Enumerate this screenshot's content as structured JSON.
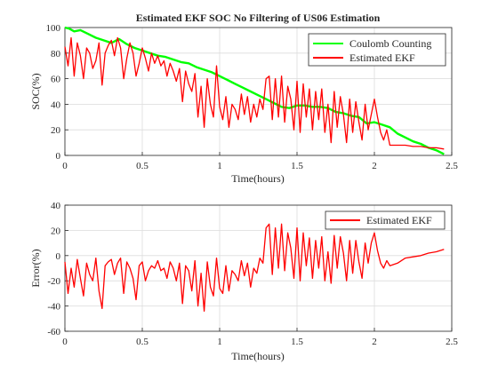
{
  "chart_data": [
    {
      "type": "line",
      "title": "Estimated EKF SOC No Filtering of US06 Estimation",
      "xlabel": "Time(hours)",
      "ylabel": "SOC(%)",
      "xlim": [
        0,
        2.5
      ],
      "ylim": [
        0,
        100
      ],
      "xticks": [
        "0",
        "0.5",
        "1",
        "1.5",
        "2",
        "2.5"
      ],
      "yticks": [
        "0",
        "20",
        "40",
        "60",
        "80",
        "100"
      ],
      "grid": true,
      "legend": "top-right",
      "series": [
        {
          "name": "Coulomb Counting",
          "color": "#00ff00",
          "x": [
            0,
            0.03,
            0.06,
            0.1,
            0.15,
            0.2,
            0.25,
            0.3,
            0.35,
            0.4,
            0.45,
            0.5,
            0.55,
            0.6,
            0.65,
            0.7,
            0.75,
            0.8,
            0.85,
            0.9,
            0.95,
            1.0,
            1.05,
            1.1,
            1.15,
            1.2,
            1.25,
            1.3,
            1.35,
            1.4,
            1.45,
            1.5,
            1.55,
            1.6,
            1.65,
            1.7,
            1.75,
            1.8,
            1.85,
            1.9,
            1.95,
            2.0,
            2.05,
            2.1,
            2.15,
            2.2,
            2.25,
            2.3,
            2.35,
            2.4,
            2.45
          ],
          "values": [
            100,
            99,
            97,
            98,
            95,
            92,
            90,
            88,
            91,
            87,
            84,
            82,
            80,
            78,
            77,
            75,
            73,
            72,
            69,
            67,
            65,
            62,
            59,
            56,
            53,
            50,
            47,
            44,
            41,
            38,
            37,
            39,
            39,
            38,
            38,
            37,
            34,
            33,
            31,
            30,
            25,
            26,
            24,
            22,
            17,
            14,
            11,
            9,
            6,
            4,
            1
          ]
        },
        {
          "name": "Estimated EKF",
          "color": "#ff0000",
          "x": [
            0,
            0.02,
            0.04,
            0.06,
            0.08,
            0.1,
            0.12,
            0.14,
            0.16,
            0.18,
            0.2,
            0.22,
            0.24,
            0.26,
            0.28,
            0.3,
            0.32,
            0.34,
            0.36,
            0.38,
            0.4,
            0.42,
            0.44,
            0.46,
            0.48,
            0.5,
            0.52,
            0.54,
            0.56,
            0.58,
            0.6,
            0.62,
            0.64,
            0.66,
            0.68,
            0.7,
            0.72,
            0.74,
            0.76,
            0.78,
            0.8,
            0.82,
            0.84,
            0.86,
            0.88,
            0.9,
            0.92,
            0.94,
            0.96,
            0.98,
            1.0,
            1.02,
            1.04,
            1.06,
            1.08,
            1.1,
            1.12,
            1.14,
            1.16,
            1.18,
            1.2,
            1.22,
            1.24,
            1.26,
            1.28,
            1.3,
            1.32,
            1.34,
            1.36,
            1.38,
            1.4,
            1.42,
            1.44,
            1.46,
            1.48,
            1.5,
            1.52,
            1.54,
            1.56,
            1.58,
            1.6,
            1.62,
            1.64,
            1.66,
            1.68,
            1.7,
            1.72,
            1.74,
            1.76,
            1.78,
            1.8,
            1.82,
            1.84,
            1.86,
            1.88,
            1.9,
            1.92,
            1.94,
            1.96,
            1.98,
            2.0,
            2.02,
            2.04,
            2.06,
            2.08,
            2.1,
            2.15,
            2.2,
            2.25,
            2.3,
            2.35,
            2.4,
            2.45
          ],
          "values": [
            85,
            70,
            92,
            62,
            88,
            78,
            60,
            84,
            80,
            68,
            74,
            88,
            55,
            80,
            86,
            90,
            78,
            92,
            84,
            60,
            76,
            88,
            80,
            62,
            72,
            84,
            76,
            66,
            80,
            72,
            78,
            70,
            74,
            62,
            72,
            66,
            58,
            68,
            42,
            66,
            56,
            50,
            64,
            30,
            54,
            22,
            60,
            40,
            30,
            70,
            38,
            28,
            46,
            22,
            40,
            36,
            28,
            48,
            32,
            46,
            26,
            40,
            30,
            44,
            36,
            60,
            62,
            28,
            60,
            30,
            62,
            26,
            54,
            44,
            20,
            58,
            18,
            56,
            30,
            52,
            20,
            50,
            28,
            52,
            18,
            40,
            10,
            50,
            22,
            46,
            32,
            10,
            44,
            18,
            42,
            26,
            12,
            40,
            20,
            32,
            44,
            30,
            18,
            12,
            20,
            8,
            8,
            8,
            7,
            7,
            6,
            6,
            5
          ]
        }
      ]
    },
    {
      "type": "line",
      "title": "",
      "xlabel": "Time(hours)",
      "ylabel": "Error(%)",
      "xlim": [
        0,
        2.5
      ],
      "ylim": [
        -60,
        40
      ],
      "xticks": [
        "0",
        "0.5",
        "1",
        "1.5",
        "2",
        "2.5"
      ],
      "yticks": [
        "-60",
        "-40",
        "-20",
        "0",
        "20",
        "40"
      ],
      "grid": true,
      "legend": "top-right",
      "series": [
        {
          "name": "Estimated EKF",
          "color": "#ff0000",
          "x": [
            0,
            0.02,
            0.04,
            0.06,
            0.08,
            0.1,
            0.12,
            0.14,
            0.16,
            0.18,
            0.2,
            0.22,
            0.24,
            0.26,
            0.28,
            0.3,
            0.32,
            0.34,
            0.36,
            0.38,
            0.4,
            0.42,
            0.44,
            0.46,
            0.48,
            0.5,
            0.52,
            0.54,
            0.56,
            0.58,
            0.6,
            0.62,
            0.64,
            0.66,
            0.68,
            0.7,
            0.72,
            0.74,
            0.76,
            0.78,
            0.8,
            0.82,
            0.84,
            0.86,
            0.88,
            0.9,
            0.92,
            0.94,
            0.96,
            0.98,
            1.0,
            1.02,
            1.04,
            1.06,
            1.08,
            1.1,
            1.12,
            1.14,
            1.16,
            1.18,
            1.2,
            1.22,
            1.24,
            1.26,
            1.28,
            1.3,
            1.32,
            1.34,
            1.36,
            1.38,
            1.4,
            1.42,
            1.44,
            1.46,
            1.48,
            1.5,
            1.52,
            1.54,
            1.56,
            1.58,
            1.6,
            1.62,
            1.64,
            1.66,
            1.68,
            1.7,
            1.72,
            1.74,
            1.76,
            1.78,
            1.8,
            1.82,
            1.84,
            1.86,
            1.88,
            1.9,
            1.92,
            1.94,
            1.96,
            1.98,
            2.0,
            2.02,
            2.04,
            2.06,
            2.08,
            2.1,
            2.15,
            2.2,
            2.25,
            2.3,
            2.35,
            2.4,
            2.45
          ],
          "values": [
            -5,
            -30,
            -10,
            -25,
            -3,
            -18,
            -32,
            -6,
            -15,
            -20,
            -2,
            -28,
            -42,
            -8,
            -5,
            -3,
            -15,
            -6,
            -2,
            -30,
            -5,
            -10,
            -18,
            -35,
            -8,
            -5,
            -20,
            -12,
            -8,
            -10,
            -4,
            -12,
            -10,
            -18,
            -5,
            -10,
            -20,
            -6,
            -38,
            -8,
            -12,
            -28,
            -4,
            -40,
            -14,
            -44,
            -5,
            -25,
            -32,
            -2,
            -26,
            -30,
            -8,
            -28,
            -12,
            -15,
            -20,
            -4,
            -16,
            -6,
            -25,
            -10,
            -14,
            -2,
            -6,
            22,
            25,
            -15,
            22,
            -10,
            25,
            -12,
            18,
            6,
            -18,
            22,
            -20,
            18,
            -8,
            14,
            -18,
            12,
            -10,
            15,
            -20,
            3,
            -22,
            16,
            -10,
            15,
            2,
            -20,
            12,
            -14,
            12,
            -5,
            -18,
            10,
            -6,
            10,
            18,
            4,
            -6,
            -10,
            -4,
            -8,
            -6,
            -2,
            -1,
            0,
            2,
            3,
            5
          ]
        }
      ]
    }
  ]
}
